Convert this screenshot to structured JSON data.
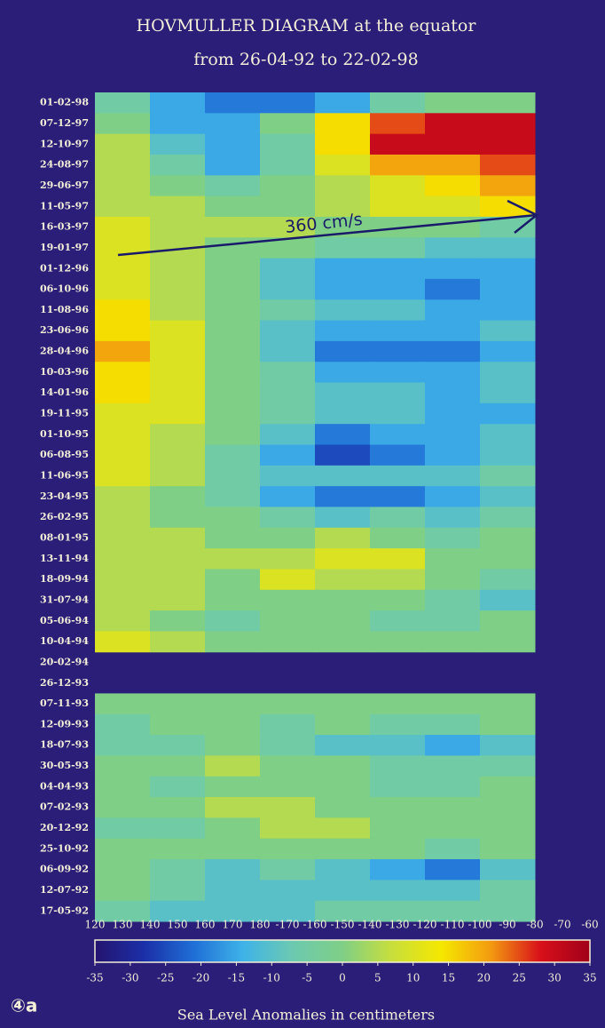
{
  "chart_data": {
    "type": "heatmap",
    "title": "HOVMULLER DIAGRAM at the equator",
    "subtitle": "from 26-04-92 to 22-02-98",
    "colorbar_label": "Sea Level Anomalies in centimeters",
    "panel_label": "④a",
    "annotation": "360 cm/s",
    "categories": [
      "01-02-98",
      "07-12-97",
      "12-10-97",
      "24-08-97",
      "29-06-97",
      "11-05-97",
      "16-03-97",
      "19-01-97",
      "01-12-96",
      "06-10-96",
      "11-08-96",
      "23-06-96",
      "28-04-96",
      "10-03-96",
      "14-01-96",
      "19-11-95",
      "01-10-95",
      "06-08-95",
      "11-06-95",
      "23-04-95",
      "26-02-95",
      "08-01-95",
      "13-11-94",
      "18-09-94",
      "31-07-94",
      "05-06-94",
      "10-04-94",
      "20-02-94",
      "26-12-93",
      "07-11-93",
      "12-09-93",
      "18-07-93",
      "30-05-93",
      "04-04-93",
      "07-02-93",
      "20-12-92",
      "25-10-92",
      "06-09-92",
      "12-07-92",
      "17-05-92"
    ],
    "x_bins": [
      120,
      140,
      160,
      180,
      200,
      220,
      240,
      260,
      280
    ],
    "values": [
      [
        -5,
        -15,
        -20,
        -20,
        -15,
        -5,
        0,
        0
      ],
      [
        0,
        -15,
        -15,
        0,
        15,
        25,
        30,
        30
      ],
      [
        5,
        -10,
        -15,
        -5,
        15,
        30,
        30,
        30
      ],
      [
        5,
        -5,
        -15,
        -5,
        10,
        20,
        20,
        25
      ],
      [
        5,
        0,
        -5,
        0,
        5,
        10,
        15,
        20
      ],
      [
        5,
        5,
        0,
        0,
        5,
        10,
        10,
        15
      ],
      [
        10,
        5,
        5,
        5,
        0,
        0,
        0,
        -5
      ],
      [
        10,
        5,
        0,
        0,
        -5,
        -5,
        -10,
        -10
      ],
      [
        10,
        5,
        0,
        -10,
        -15,
        -15,
        -15,
        -15
      ],
      [
        10,
        5,
        0,
        -10,
        -15,
        -15,
        -20,
        -15
      ],
      [
        15,
        5,
        0,
        -5,
        -10,
        -10,
        -15,
        -15
      ],
      [
        15,
        10,
        0,
        -10,
        -15,
        -15,
        -15,
        -10
      ],
      [
        20,
        10,
        0,
        -10,
        -20,
        -20,
        -20,
        -15
      ],
      [
        15,
        10,
        0,
        -5,
        -15,
        -15,
        -15,
        -10
      ],
      [
        15,
        10,
        0,
        -5,
        -10,
        -10,
        -15,
        -10
      ],
      [
        10,
        10,
        0,
        -5,
        -10,
        -10,
        -15,
        -15
      ],
      [
        10,
        5,
        0,
        -10,
        -20,
        -15,
        -15,
        -10
      ],
      [
        10,
        5,
        -5,
        -15,
        -25,
        -20,
        -15,
        -10
      ],
      [
        10,
        5,
        -5,
        -10,
        -10,
        -10,
        -10,
        -5
      ],
      [
        5,
        0,
        -5,
        -15,
        -20,
        -20,
        -15,
        -10
      ],
      [
        5,
        0,
        0,
        -5,
        -10,
        -5,
        -10,
        -5
      ],
      [
        5,
        5,
        0,
        0,
        5,
        0,
        -5,
        0
      ],
      [
        5,
        5,
        5,
        5,
        10,
        10,
        0,
        0
      ],
      [
        5,
        5,
        0,
        10,
        5,
        5,
        0,
        -5
      ],
      [
        5,
        5,
        0,
        0,
        0,
        0,
        -5,
        -10
      ],
      [
        5,
        0,
        -5,
        0,
        0,
        -5,
        -5,
        0
      ],
      [
        10,
        5,
        0,
        0,
        0,
        0,
        0,
        0
      ],
      [
        null,
        null,
        null,
        null,
        null,
        null,
        null,
        null
      ],
      [
        null,
        null,
        null,
        null,
        null,
        null,
        null,
        null
      ],
      [
        0,
        0,
        0,
        0,
        0,
        0,
        0,
        0
      ],
      [
        -5,
        0,
        0,
        -5,
        0,
        -5,
        -5,
        0
      ],
      [
        -5,
        -5,
        0,
        -5,
        -10,
        -10,
        -15,
        -10
      ],
      [
        0,
        0,
        5,
        0,
        0,
        -5,
        -5,
        -5
      ],
      [
        0,
        -5,
        0,
        0,
        0,
        -5,
        -5,
        0
      ],
      [
        0,
        0,
        5,
        5,
        0,
        0,
        0,
        0
      ],
      [
        -5,
        -5,
        0,
        5,
        5,
        0,
        0,
        0
      ],
      [
        0,
        0,
        0,
        0,
        0,
        0,
        -5,
        0
      ],
      [
        0,
        -5,
        -10,
        -5,
        -10,
        -15,
        -20,
        -10
      ],
      [
        0,
        -5,
        -10,
        -10,
        -10,
        -10,
        -10,
        -5
      ],
      [
        -5,
        -10,
        -10,
        -10,
        -5,
        -5,
        -5,
        -5
      ]
    ],
    "xlim": [
      120,
      300
    ],
    "xticks": [
      120,
      130,
      140,
      150,
      160,
      170,
      180,
      {
        "value": 190,
        "label": "-170"
      },
      {
        "value": 200,
        "label": "-160"
      },
      {
        "value": 210,
        "label": "-150"
      },
      {
        "value": 220,
        "label": "-140"
      },
      {
        "value": 230,
        "label": "-130"
      },
      {
        "value": 240,
        "label": "-120"
      },
      {
        "value": 250,
        "label": "-110"
      },
      {
        "value": 260,
        "label": "-100"
      },
      {
        "value": 270,
        "label": "-90"
      },
      {
        "value": 280,
        "label": "-80"
      },
      {
        "value": 290,
        "label": "-70"
      },
      {
        "value": 300,
        "label": "-60"
      }
    ],
    "clim": [
      -35,
      35
    ],
    "cticks": [
      -35,
      -30,
      -25,
      -20,
      -15,
      -10,
      -5,
      0,
      5,
      10,
      15,
      20,
      25,
      30,
      35
    ],
    "colormap": [
      "#24146e",
      "#1b2fa8",
      "#1f6fd6",
      "#3fb3e8",
      "#6cc9b0",
      "#7fcf86",
      "#c8de3c",
      "#f5e800",
      "#f39a10",
      "#d8101a",
      "#a0001a"
    ]
  }
}
